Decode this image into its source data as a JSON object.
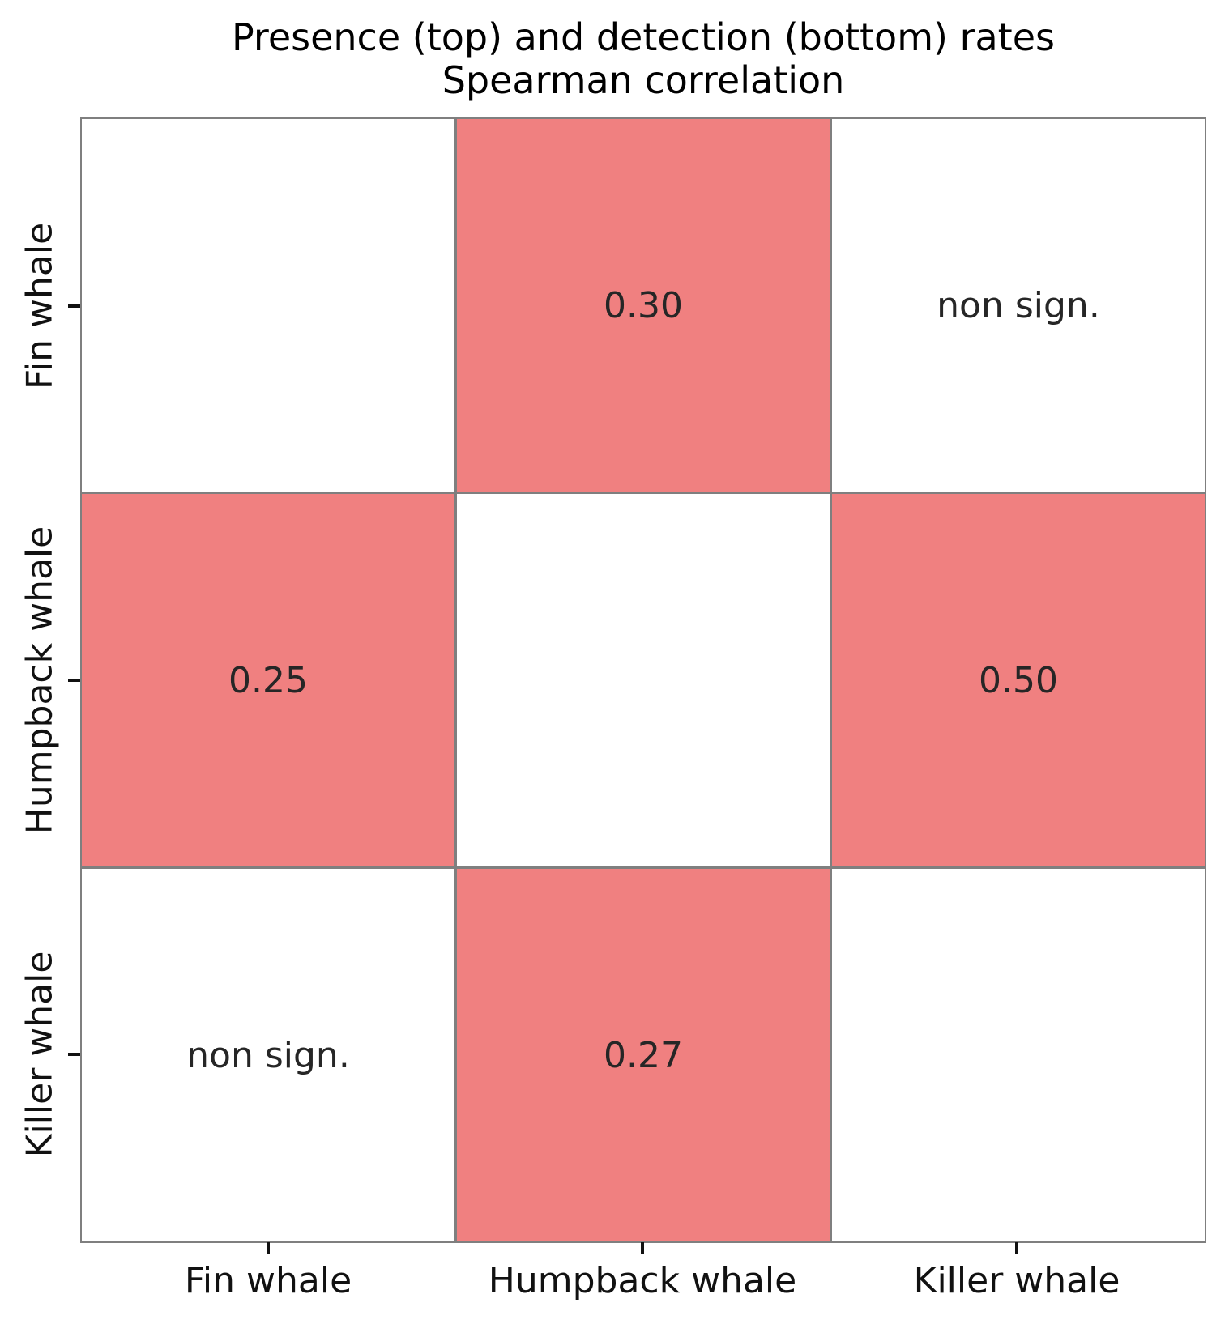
{
  "title": {
    "line1": "Presence (top) and detection (bottom) rates",
    "line2": "Spearman correlation"
  },
  "axes": {
    "x_labels": [
      "Fin whale",
      "Humpback whale",
      "Killer whale"
    ],
    "y_labels": [
      "Fin whale",
      "Humpback whale",
      "Killer whale"
    ]
  },
  "colors": {
    "significant_cell": "#f08080",
    "non_significant_cell": "#ffffff",
    "grid_line": "#7f7f7f",
    "cell_text": "#262626"
  },
  "chart_data": {
    "type": "heatmap",
    "title": "Presence (top) and detection (bottom) rates Spearman correlation",
    "rows": [
      "Fin whale",
      "Humpback whale",
      "Killer whale"
    ],
    "columns": [
      "Fin whale",
      "Humpback whale",
      "Killer whale"
    ],
    "legend_position": "none",
    "cells": [
      [
        {
          "text": "",
          "value": null,
          "bg": "#ffffff"
        },
        {
          "text": "0.30",
          "value": 0.3,
          "bg": "#f08080"
        },
        {
          "text": "non sign.",
          "value": null,
          "bg": "#ffffff"
        }
      ],
      [
        {
          "text": "0.25",
          "value": 0.25,
          "bg": "#f08080"
        },
        {
          "text": "",
          "value": null,
          "bg": "#ffffff"
        },
        {
          "text": "0.50",
          "value": 0.5,
          "bg": "#f08080"
        }
      ],
      [
        {
          "text": "non sign.",
          "value": null,
          "bg": "#ffffff"
        },
        {
          "text": "0.27",
          "value": 0.27,
          "bg": "#f08080"
        },
        {
          "text": "",
          "value": null,
          "bg": "#ffffff"
        }
      ]
    ]
  }
}
